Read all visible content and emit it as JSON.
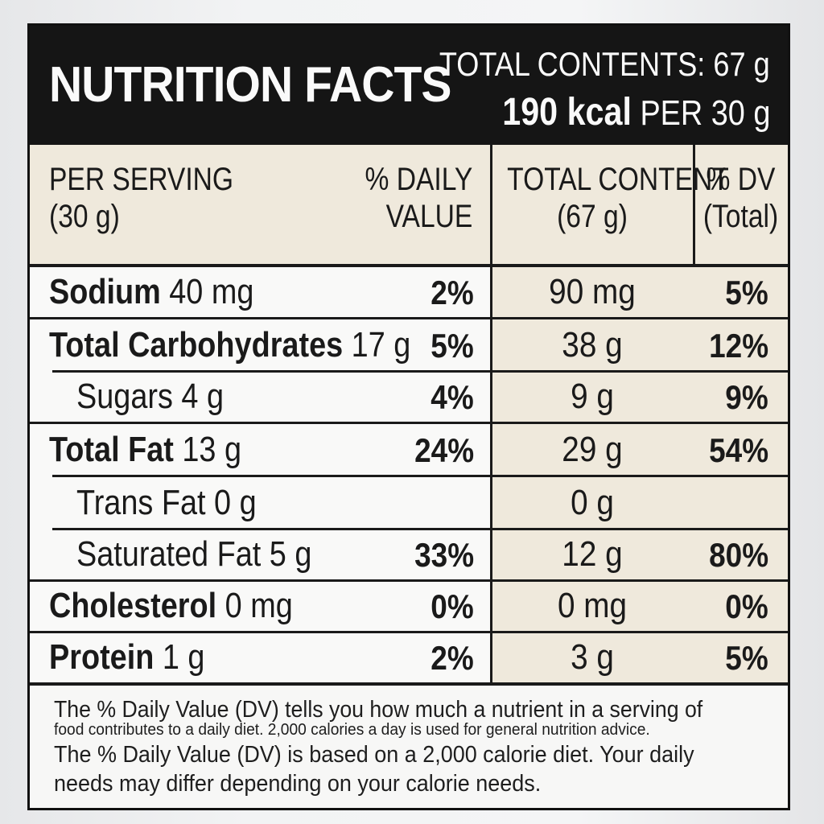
{
  "header": {
    "title": "NUTRITION FACTS",
    "total_contents": "TOTAL CONTENTS: 67 g",
    "kcal": "190 kcal",
    "per": "PER 30 g"
  },
  "columns": {
    "per_serving_line1": "PER SERVING",
    "per_serving_line2": "(30 g)",
    "daily_value_line1": "% DAILY",
    "daily_value_line2": "VALUE",
    "total_content_line1": "TOTAL CONTENT",
    "total_content_line2": "(67 g)",
    "dv_total_line1": "% DV",
    "dv_total_line2": "(Total)"
  },
  "rows": [
    {
      "name": "Sodium",
      "amount": "40 mg",
      "dv": "2%",
      "total": "90 mg",
      "dv_total": "5%"
    },
    {
      "name": "Total Carbohydrates",
      "amount": "17 g",
      "dv": "5%",
      "total": "38 g",
      "dv_total": "12%"
    },
    {
      "name": "Sugars",
      "amount": "4 g",
      "dv": "4%",
      "total": "9 g",
      "dv_total": "9%"
    },
    {
      "name": "Total Fat",
      "amount": "13 g",
      "dv": "24%",
      "total": "29 g",
      "dv_total": "54%"
    },
    {
      "name": "Trans Fat",
      "amount": "0 g",
      "dv": "",
      "total": "0 g",
      "dv_total": ""
    },
    {
      "name": "Saturated Fat",
      "amount": "5 g",
      "dv": "33%",
      "total": "12 g",
      "dv_total": "80%"
    },
    {
      "name": "Cholesterol",
      "amount": "0 mg",
      "dv": "0%",
      "total": "0 mg",
      "dv_total": "0%"
    },
    {
      "name": "Protein",
      "amount": "1 g",
      "dv": "2%",
      "total": "3 g",
      "dv_total": "5%"
    }
  ],
  "footnote": {
    "line1": "The % Daily Value (DV) tells you how much a nutrient in a serving of",
    "line2": "food contributes to a daily diet. 2,000 calories a day is used for general nutrition advice.",
    "line3": "The % Daily Value (DV) is based on a 2,000 calorie diet. Your daily",
    "line4": "needs may differ depending on your calorie needs."
  }
}
